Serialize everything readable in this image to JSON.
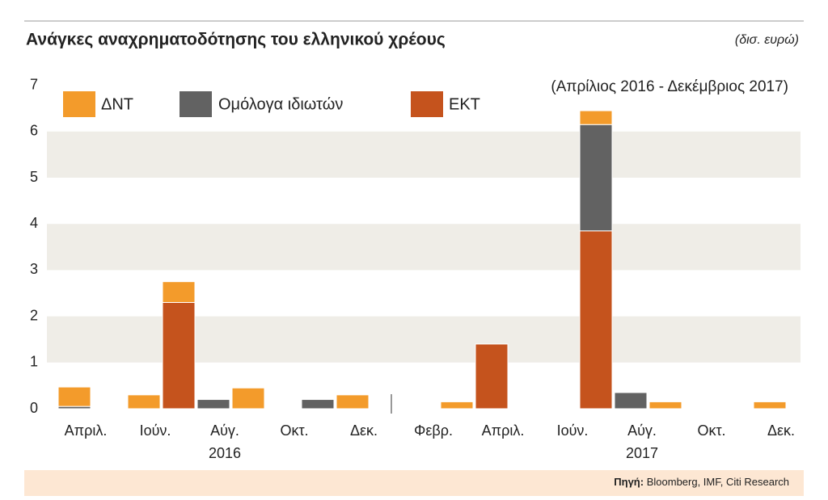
{
  "chart_data": {
    "type": "bar",
    "stacked": true,
    "title": "Ανάγκες αναχρηματοδότησης του ελληνικού χρέους",
    "unit": "(δισ. ευρώ)",
    "subtitle": "(Απρίλιος 2016 - Δεκέμβριος 2017)",
    "categories": [
      "Απριλ.",
      null,
      "Ιούν.",
      null,
      "Αύγ.",
      null,
      "Οκτ.",
      null,
      "Δεκ.",
      null,
      "Φεβρ.",
      null,
      "Απριλ.",
      null,
      "Ιούν.",
      null,
      "Αύγ.",
      null,
      "Οκτ.",
      null,
      "Δεκ."
    ],
    "years": [
      "2016",
      "2017"
    ],
    "series": [
      {
        "name": "ΔΝΤ",
        "color": "#f39b2b",
        "values": [
          0.42,
          0,
          0.3,
          0.45,
          0,
          0.45,
          0,
          0,
          0.3,
          0,
          0,
          0.15,
          0,
          0,
          0,
          0.3,
          0,
          0.15,
          0,
          0,
          0.15
        ]
      },
      {
        "name": "Ομόλογα ιδιωτών",
        "color": "#626262",
        "values": [
          0.05,
          0,
          0,
          0,
          0.2,
          0,
          0,
          0.2,
          0,
          0,
          0,
          0,
          0,
          0,
          0,
          2.3,
          0.35,
          0,
          0,
          0,
          0
        ]
      },
      {
        "name": "ΕΚΤ",
        "color": "#c5531d",
        "values": [
          0,
          0,
          0,
          2.3,
          0,
          0,
          0,
          0,
          0,
          0,
          0,
          0,
          1.4,
          0,
          0,
          3.85,
          0,
          0,
          0,
          0,
          0
        ]
      }
    ],
    "ylim": [
      0,
      7
    ],
    "yticks": [
      0,
      1,
      2,
      3,
      4,
      5,
      6,
      7
    ],
    "grid": "bands",
    "source": {
      "label": "Πηγή:",
      "text": "Bloomberg, IMF, Citi Research"
    }
  }
}
